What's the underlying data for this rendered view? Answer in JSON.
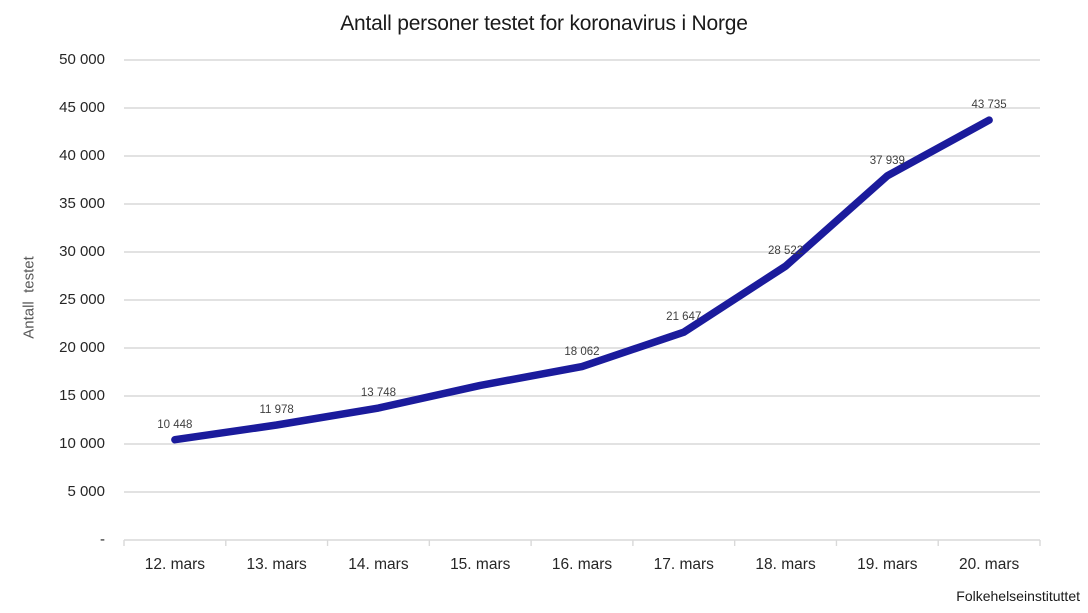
{
  "chart_data": {
    "type": "line",
    "title": "Antall personer testet for koronavirus i Norge",
    "ylabel": "Antall  testet",
    "xlabel": "",
    "source": "Folkehelseinstituttet",
    "categories": [
      "12. mars",
      "13. mars",
      "14. mars",
      "15. mars",
      "16. mars",
      "17. mars",
      "18. mars",
      "19. mars",
      "20. mars"
    ],
    "values": [
      10448,
      11978,
      13748,
      16100,
      18062,
      21647,
      28522,
      37939,
      43735
    ],
    "point_labels": [
      "10 448",
      "11 978",
      "13 748",
      "",
      "18 062",
      "21 647",
      "28 522",
      "37 939",
      "43 735"
    ],
    "y_tick_labels": [
      "50 000",
      "45 000",
      "40 000",
      "35 000",
      "30 000",
      "25 000",
      "20 000",
      "15 000",
      "10 000",
      "5 000",
      "-"
    ],
    "ylim": [
      0,
      50000
    ],
    "y_tick_step": 5000,
    "grid": true,
    "legend": false,
    "colors": {
      "line": "#1b1b9c",
      "gridline": "#d9d9d9",
      "axis": "#d9d9d9",
      "title_text": "#1a1a1a",
      "tick_text": "#262626",
      "data_label_text": "#404040",
      "y_title_text": "#595959"
    }
  }
}
